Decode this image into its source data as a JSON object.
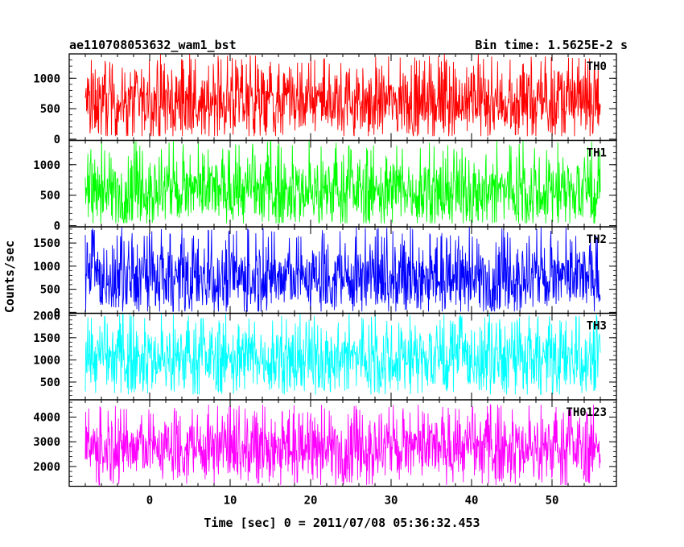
{
  "header": {
    "left": "ae110708053632_wam1_bst",
    "right": "Bin time: 1.5625E-2 s"
  },
  "ylabel": "Counts/sec",
  "xlabel": "Time [sec] 0 = 2011/07/08 05:36:32.453",
  "chart_data": [
    {
      "type": "line",
      "series": [
        {
          "name": "TH0",
          "mean": 620,
          "min": 50,
          "max": 1400
        }
      ],
      "color": "#ff0000",
      "ylim": [
        -20,
        1400
      ],
      "yticks": [
        0,
        500,
        1000
      ],
      "ytick_labels": [
        "0",
        "500",
        "1000"
      ],
      "x_range": [
        -8,
        56
      ],
      "xlim": [
        -10,
        58
      ]
    },
    {
      "type": "line",
      "series": [
        {
          "name": "TH1",
          "mean": 580,
          "min": 40,
          "max": 1400
        }
      ],
      "color": "#00ff00",
      "ylim": [
        -20,
        1400
      ],
      "yticks": [
        0,
        500,
        1000
      ],
      "ytick_labels": [
        "0",
        "500",
        "1000"
      ],
      "x_range": [
        -8,
        56
      ],
      "xlim": [
        -10,
        58
      ]
    },
    {
      "type": "line",
      "series": [
        {
          "name": "TH2",
          "mean": 760,
          "min": 20,
          "max": 1850
        }
      ],
      "color": "#0000ff",
      "ylim": [
        -20,
        1850
      ],
      "yticks": [
        0,
        500,
        1000,
        1500
      ],
      "ytick_labels": [
        "0",
        "500",
        "1000",
        "1500"
      ],
      "x_range": [
        -8,
        56
      ],
      "xlim": [
        -10,
        58
      ]
    },
    {
      "type": "line",
      "series": [
        {
          "name": "TH3",
          "mean": 1050,
          "min": 220,
          "max": 2050
        }
      ],
      "color": "#00ffff",
      "ylim": [
        100,
        2050
      ],
      "yticks": [
        500,
        1000,
        1500,
        2000
      ],
      "ytick_labels": [
        "500",
        "1000",
        "1500",
        "2000"
      ],
      "x_range": [
        -8,
        56
      ],
      "xlim": [
        -10,
        58
      ]
    },
    {
      "type": "line",
      "series": [
        {
          "name": "TH0123",
          "mean": 2780,
          "min": 1250,
          "max": 4500
        }
      ],
      "color": "#ff00ff",
      "ylim": [
        1200,
        4700
      ],
      "yticks": [
        2000,
        3000,
        4000
      ],
      "ytick_labels": [
        "2000",
        "3000",
        "4000"
      ],
      "x_range": [
        -8,
        56
      ],
      "xlim": [
        -10,
        58
      ]
    }
  ],
  "xaxis": {
    "ticks": [
      0,
      10,
      20,
      30,
      40,
      50
    ],
    "labels": [
      "0",
      "10",
      "20",
      "30",
      "40",
      "50"
    ]
  }
}
